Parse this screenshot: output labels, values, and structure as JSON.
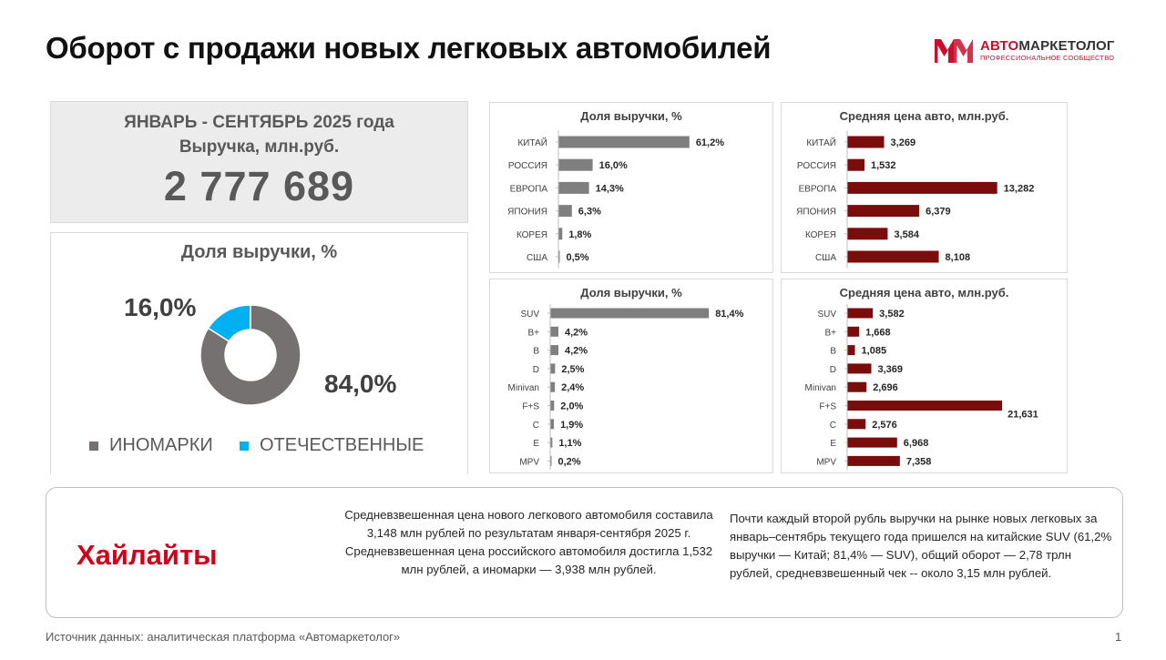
{
  "header": {
    "title": "Оборот с продажи новых легковых автомобилей"
  },
  "logo": {
    "name_red": "АВТО",
    "name_rest": "МАРКЕТОЛОГ",
    "subtitle": "ПРОФЕССИОНАЛЬНОЕ СООБЩЕСТВО",
    "icon": "am-logo-icon"
  },
  "kpi": {
    "period": "ЯНВАРЬ - СЕНТЯБРЬ 2025 года",
    "label": "Выручка, млн.руб.",
    "value": "2 777 689"
  },
  "colors": {
    "gray_bar": "#7f7f7f",
    "dark_red_bar": "#7b0c0c",
    "foreign": "#767171",
    "domestic": "#00b0f0",
    "accent_red": "#d0021b"
  },
  "chart_data": [
    {
      "type": "pie",
      "title": "Доля выручки, %",
      "categories": [
        "ИНОМАРКИ",
        "ОТЕЧЕСТВЕННЫЕ"
      ],
      "values": [
        84.0,
        16.0
      ],
      "labels": [
        "84,0%",
        "16,0%"
      ],
      "colors": [
        "#767171",
        "#00b0f0"
      ],
      "legend": "bottom"
    },
    {
      "type": "bar",
      "orientation": "horizontal",
      "title": "Доля выручки, %",
      "categories": [
        "КИТАЙ",
        "РОССИЯ",
        "ЕВРОПА",
        "ЯПОНИЯ",
        "КОРЕЯ",
        "США"
      ],
      "values": [
        61.2,
        16.0,
        14.3,
        6.3,
        1.8,
        0.5
      ],
      "labels": [
        "61,2%",
        "16,0%",
        "14,3%",
        "6,3%",
        "1,8%",
        "0,5%"
      ],
      "color": "#7f7f7f",
      "xlim": [
        0,
        80
      ]
    },
    {
      "type": "bar",
      "orientation": "horizontal",
      "title": "Средняя цена авто, млн.руб.",
      "categories": [
        "КИТАЙ",
        "РОССИЯ",
        "ЕВРОПА",
        "ЯПОНИЯ",
        "КОРЕЯ",
        "США"
      ],
      "values": [
        3.269,
        1.532,
        13.282,
        6.379,
        3.584,
        8.108
      ],
      "labels": [
        "3,269",
        "1,532",
        "13,282",
        "6,379",
        "3,584",
        "8,108"
      ],
      "color": "#7b0c0c",
      "xlim": [
        0,
        15
      ]
    },
    {
      "type": "bar",
      "orientation": "horizontal",
      "title": "Доля выручки, %",
      "categories": [
        "SUV",
        "B+",
        "B",
        "D",
        "Minivan",
        "F+S",
        "C",
        "E",
        "MPV"
      ],
      "values": [
        81.4,
        4.2,
        4.2,
        2.5,
        2.4,
        2.0,
        1.9,
        1.1,
        0.2
      ],
      "labels": [
        "81,4%",
        "4,2%",
        "4,2%",
        "2,5%",
        "2,4%",
        "2,0%",
        "1,9%",
        "1,1%",
        "0,2%"
      ],
      "color": "#7f7f7f",
      "xlim": [
        0,
        100
      ]
    },
    {
      "type": "bar",
      "orientation": "horizontal",
      "title": "Средняя цена авто, млн.руб.",
      "categories": [
        "SUV",
        "B+",
        "B",
        "D",
        "Minivan",
        "F+S",
        "C",
        "E",
        "MPV"
      ],
      "values": [
        3.582,
        1.668,
        1.085,
        3.369,
        2.696,
        21.631,
        2.576,
        6.968,
        7.358
      ],
      "labels": [
        "3,582",
        "1,668",
        "1,085",
        "3,369",
        "2,696",
        "21,631",
        "2,576",
        "6,968",
        "7,358"
      ],
      "color": "#7b0c0c",
      "xlim": [
        0,
        22
      ]
    }
  ],
  "highlights": {
    "title": "Хайлайты",
    "text1": "Средневзвешенная цена нового легкового автомобиля составила 3,148 млн рублей по результатам января-сентября 2025 г. Средневзвешенная цена российского автомобиля достигла 1,532 млн рублей, а иномарки — 3,938 млн рублей.",
    "text2": "Почти каждый второй рубль выручки на рынке новых легковых за январь–сентябрь текущего года пришелся на китайские SUV (61,2% выручки — Китай; 81,4% — SUV), общий оборот — 2,78 трлн рублей, средневзвешенный чек -- около 3,15 млн рублей."
  },
  "footer": {
    "source": "Источник данных: аналитическая платформа «Автомаркетолог»",
    "page": "1"
  }
}
